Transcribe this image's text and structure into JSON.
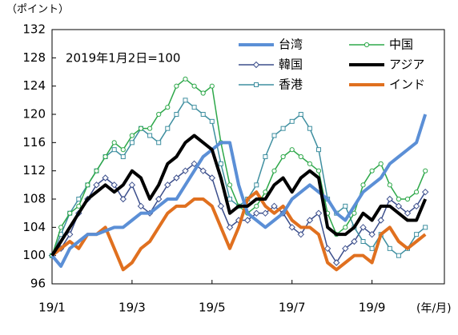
{
  "chart_data": {
    "type": "line",
    "y_label": "（ポイント）",
    "x_label": "(年/月)",
    "annotation": "2019年1月2日=100",
    "categories": [
      "19/1",
      null,
      null,
      null,
      null,
      null,
      null,
      null,
      null,
      "19/3",
      null,
      null,
      null,
      null,
      null,
      null,
      null,
      null,
      "19/5",
      null,
      null,
      null,
      null,
      null,
      null,
      null,
      null,
      "19/7",
      null,
      null,
      null,
      null,
      null,
      null,
      null,
      null,
      "19/9",
      null,
      null,
      null,
      null,
      null,
      null
    ],
    "ylim": [
      96,
      132
    ],
    "yticks": [
      96,
      100,
      104,
      108,
      112,
      116,
      120,
      124,
      128,
      132
    ],
    "grid": false,
    "legend": "upper right",
    "series": [
      {
        "name": "台湾",
        "color": "#5b8fd6",
        "width": 4,
        "marker": "none",
        "values": [
          100,
          98.5,
          101,
          102,
          103,
          103,
          103.5,
          104,
          104,
          105,
          106,
          106,
          107,
          108,
          108,
          110,
          112,
          114,
          115,
          116,
          116,
          110,
          106,
          105,
          104,
          105,
          106,
          108,
          109,
          110,
          109,
          108,
          106,
          105,
          107,
          109,
          110,
          111,
          113,
          114,
          115,
          116,
          120
        ]
      },
      {
        "name": "中国",
        "color": "#2ea84a",
        "width": 1.5,
        "marker": "circle",
        "values": [
          100,
          104,
          106,
          107,
          110,
          112,
          114,
          116,
          115,
          117,
          118,
          118,
          120,
          121,
          124,
          125,
          124,
          123,
          124,
          116,
          110,
          107,
          106,
          107,
          109,
          112,
          114,
          115,
          114,
          113,
          112,
          106,
          103,
          104,
          106,
          110,
          112,
          113,
          110,
          108,
          108,
          109,
          112
        ]
      },
      {
        "name": "韓国",
        "color": "#3c4f8c",
        "width": 1.5,
        "marker": "diamond",
        "values": [
          100,
          101,
          103,
          106,
          108,
          110,
          111,
          110,
          108,
          110,
          107,
          106,
          108,
          110,
          111,
          112,
          113,
          112,
          111,
          107,
          104,
          105,
          105,
          106,
          106,
          107,
          106,
          104,
          103,
          105,
          106,
          101,
          99,
          101,
          102,
          104,
          103,
          105,
          108,
          107,
          106,
          107,
          109
        ]
      },
      {
        "name": "アジア",
        "color": "#000000",
        "width": 4,
        "marker": "none",
        "values": [
          100,
          102,
          104,
          106,
          108,
          109,
          110,
          109,
          110,
          112,
          111,
          108,
          110,
          113,
          114,
          116,
          117,
          116,
          115,
          111,
          106,
          107,
          107,
          108,
          108,
          110,
          111,
          109,
          111,
          112,
          111,
          104,
          103,
          103,
          104,
          106,
          105,
          107,
          107,
          106,
          105,
          105,
          108
        ]
      },
      {
        "name": "香港",
        "color": "#3f8fa0",
        "width": 1.5,
        "marker": "square",
        "values": [
          100,
          103,
          106,
          108,
          110,
          112,
          114,
          115,
          114,
          116,
          118,
          117,
          116,
          118,
          120,
          122,
          121,
          120,
          119,
          113,
          108,
          107,
          108,
          110,
          114,
          117,
          118,
          119,
          120,
          118,
          115,
          108,
          106,
          107,
          104,
          102,
          101,
          103,
          101,
          100,
          101,
          103,
          104
        ]
      },
      {
        "name": "インド",
        "color": "#e0701f",
        "width": 4,
        "marker": "none",
        "values": [
          100,
          101,
          102,
          101,
          103,
          103,
          104,
          101,
          98,
          99,
          101,
          102,
          104,
          106,
          107,
          107,
          108,
          108,
          107,
          104,
          101,
          104,
          108,
          109,
          107,
          106,
          107,
          105,
          104,
          104,
          103,
          99,
          98,
          99,
          100,
          100,
          99,
          103,
          104,
          102,
          101,
          102,
          103
        ]
      }
    ]
  }
}
